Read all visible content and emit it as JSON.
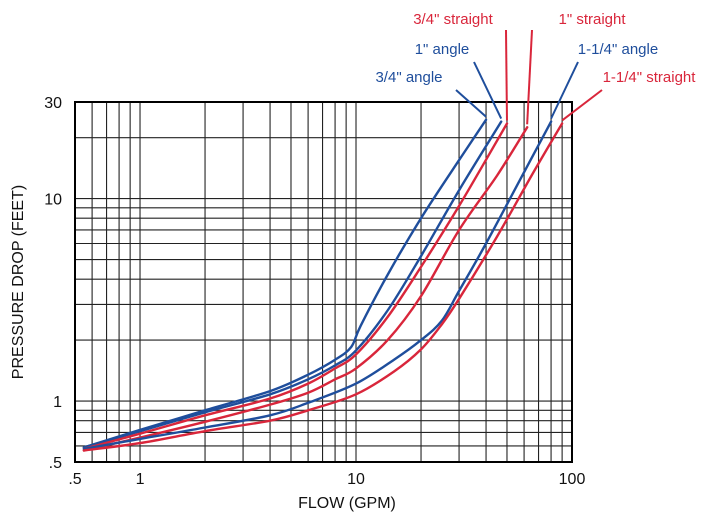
{
  "chart_data": {
    "type": "line",
    "xscale": "log",
    "yscale": "log",
    "xlim": [
      0.5,
      100
    ],
    "ylim": [
      0.5,
      30
    ],
    "xlabel": "FLOW  (GPM)",
    "ylabel": "PRESSURE DROP (FEET)",
    "x_tick_labels": [
      {
        "value": 0.5,
        "label": ".5"
      },
      {
        "value": 1,
        "label": "1"
      },
      {
        "value": 10,
        "label": "10"
      },
      {
        "value": 100,
        "label": "100"
      }
    ],
    "y_tick_labels": [
      {
        "value": 0.5,
        "label": ".5"
      },
      {
        "value": 1,
        "label": "1"
      },
      {
        "value": 10,
        "label": "10"
      },
      {
        "value": 30,
        "label": "30"
      }
    ],
    "x_gridlines": [
      0.5,
      0.6,
      0.7,
      0.8,
      0.9,
      1,
      2,
      3,
      4,
      5,
      6,
      7,
      8,
      9,
      10,
      20,
      30,
      40,
      50,
      60,
      70,
      80,
      90,
      100
    ],
    "y_gridlines": [
      0.5,
      0.6,
      0.7,
      0.8,
      0.9,
      1,
      2,
      3,
      4,
      5,
      6,
      7,
      8,
      9,
      10,
      20,
      30
    ],
    "grid": true,
    "series": [
      {
        "name": "3/4\" angle",
        "color": "#1f4e9c",
        "points": [
          [
            0.55,
            0.59
          ],
          [
            1,
            0.72
          ],
          [
            2,
            0.9
          ],
          [
            4,
            1.12
          ],
          [
            6,
            1.35
          ],
          [
            8,
            1.6
          ],
          [
            9.5,
            1.85
          ],
          [
            10.5,
            2.35
          ],
          [
            14,
            4.2
          ],
          [
            20,
            8.0
          ],
          [
            30,
            15.5
          ],
          [
            40,
            24.5
          ]
        ]
      },
      {
        "name": "1\" angle",
        "color": "#1f4e9c",
        "points": [
          [
            0.55,
            0.59
          ],
          [
            1,
            0.71
          ],
          [
            2,
            0.88
          ],
          [
            4,
            1.08
          ],
          [
            6,
            1.28
          ],
          [
            8,
            1.5
          ],
          [
            10,
            1.78
          ],
          [
            14,
            2.8
          ],
          [
            20,
            5.2
          ],
          [
            30,
            11.0
          ],
          [
            47,
            24.0
          ]
        ]
      },
      {
        "name": "3/4\" straight",
        "color": "#d9263b",
        "points": [
          [
            0.55,
            0.58
          ],
          [
            1,
            0.69
          ],
          [
            2,
            0.85
          ],
          [
            4,
            1.03
          ],
          [
            6,
            1.22
          ],
          [
            8,
            1.45
          ],
          [
            10,
            1.7
          ],
          [
            14,
            2.6
          ],
          [
            20,
            4.6
          ],
          [
            30,
            9.2
          ],
          [
            50,
            23.5
          ]
        ]
      },
      {
        "name": "1\" straight",
        "color": "#d9263b",
        "points": [
          [
            0.55,
            0.57
          ],
          [
            1,
            0.66
          ],
          [
            2,
            0.79
          ],
          [
            4,
            0.96
          ],
          [
            6,
            1.1
          ],
          [
            8,
            1.28
          ],
          [
            10,
            1.45
          ],
          [
            14,
            2.0
          ],
          [
            20,
            3.3
          ],
          [
            30,
            7.0
          ],
          [
            45,
            13.0
          ],
          [
            62,
            22.5
          ]
        ]
      },
      {
        "name": "1-1/4\" angle",
        "color": "#1f4e9c",
        "points": [
          [
            0.55,
            0.58
          ],
          [
            1,
            0.65
          ],
          [
            2,
            0.74
          ],
          [
            4,
            0.85
          ],
          [
            6,
            0.98
          ],
          [
            10,
            1.22
          ],
          [
            15,
            1.6
          ],
          [
            20,
            2.0
          ],
          [
            25,
            2.5
          ],
          [
            30,
            3.5
          ],
          [
            40,
            6.0
          ],
          [
            60,
            13.5
          ],
          [
            80,
            24.0
          ]
        ]
      },
      {
        "name": "1-1/4\" straight",
        "color": "#d9263b",
        "points": [
          [
            0.55,
            0.57
          ],
          [
            1,
            0.62
          ],
          [
            2,
            0.71
          ],
          [
            4,
            0.8
          ],
          [
            6,
            0.9
          ],
          [
            10,
            1.08
          ],
          [
            15,
            1.4
          ],
          [
            20,
            1.8
          ],
          [
            25,
            2.4
          ],
          [
            30,
            3.2
          ],
          [
            45,
            6.5
          ],
          [
            65,
            13.0
          ],
          [
            90,
            23.5
          ]
        ]
      }
    ],
    "series_labels": [
      {
        "text": "3/4\" straight",
        "color": "#d9263b"
      },
      {
        "text": "1\" straight",
        "color": "#d9263b"
      },
      {
        "text": "1\" angle",
        "color": "#1f4e9c"
      },
      {
        "text": "1-1/4\" angle",
        "color": "#1f4e9c"
      },
      {
        "text": "3/4\" angle",
        "color": "#1f4e9c"
      },
      {
        "text": "1-1/4\" straight",
        "color": "#d9263b"
      }
    ]
  }
}
